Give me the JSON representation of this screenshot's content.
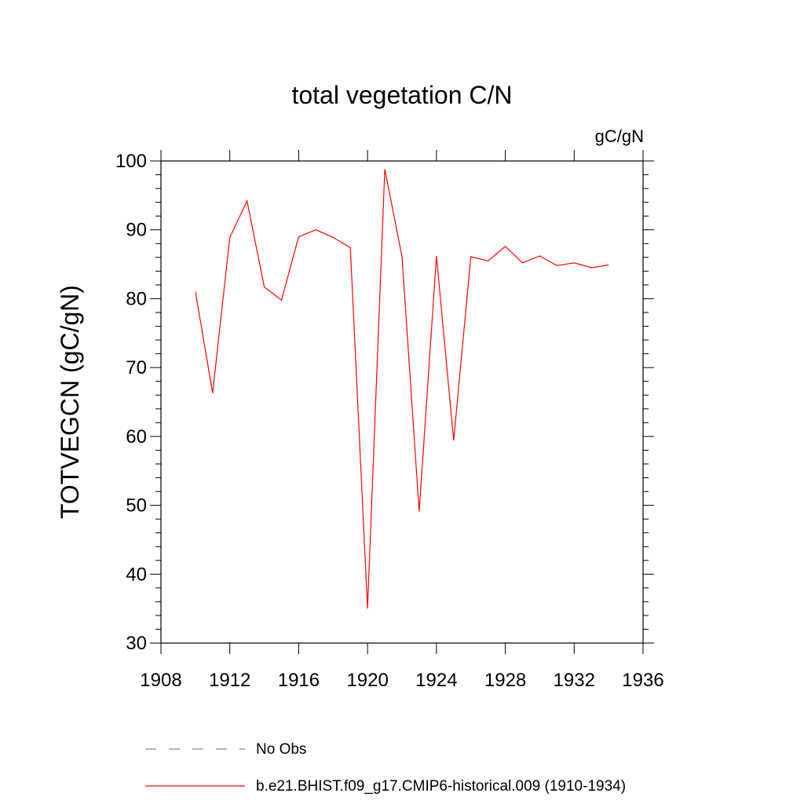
{
  "chart_data": {
    "type": "line",
    "title": "total vegetation C/N",
    "units_label": "gC/gN",
    "xlabel": "",
    "ylabel": "TOTVEGCN  (gC/gN)",
    "xlim": [
      1908,
      1936
    ],
    "ylim": [
      30,
      100
    ],
    "x_ticks": [
      1908,
      1912,
      1916,
      1920,
      1924,
      1928,
      1932,
      1936
    ],
    "y_ticks": [
      30,
      40,
      50,
      60,
      70,
      80,
      90,
      100
    ],
    "grid": false,
    "legend_position": "bottom",
    "series": [
      {
        "name": "b.e21.BHIST.f09_g17.CMIP6-historical.009 (1910-1934)",
        "color": "#ff0000",
        "x": [
          1910,
          1911,
          1912,
          1913,
          1914,
          1915,
          1916,
          1917,
          1918,
          1919,
          1920,
          1921,
          1922,
          1923,
          1924,
          1925,
          1926,
          1927,
          1928,
          1929,
          1930,
          1931,
          1932,
          1933,
          1934
        ],
        "y": [
          81.0,
          66.3,
          88.9,
          94.2,
          81.7,
          79.8,
          89.0,
          90.0,
          88.9,
          87.4,
          35.0,
          98.8,
          86.1,
          49.1,
          86.2,
          59.4,
          86.1,
          85.5,
          87.6,
          85.2,
          86.2,
          84.8,
          85.2,
          84.5,
          84.9
        ]
      }
    ],
    "legend": [
      {
        "label": "No Obs",
        "style": "dashed",
        "color": "#8080c0"
      },
      {
        "label": "b.e21.BHIST.f09_g17.CMIP6-historical.009 (1910-1934)",
        "style": "solid",
        "color": "#ff0000"
      }
    ]
  }
}
